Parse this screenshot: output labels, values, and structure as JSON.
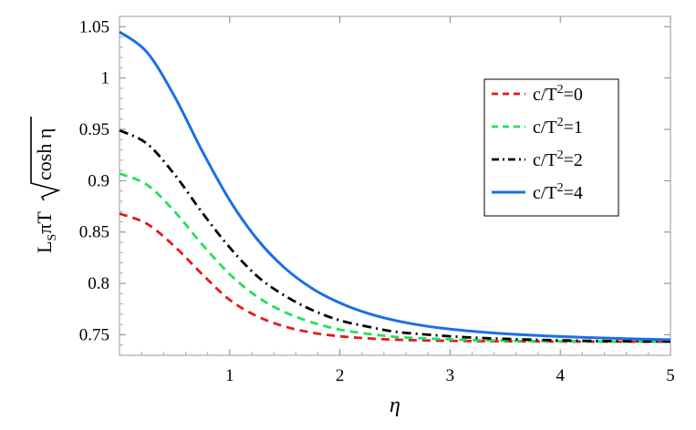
{
  "chart_data": {
    "type": "line",
    "xlabel": "η",
    "ylabel": {
      "prefix_L": "L",
      "subscript": "S",
      "middle": "πT",
      "radicand": "cosh η"
    },
    "xlim": [
      0,
      5
    ],
    "ylim": [
      0.73,
      1.06
    ],
    "xticks": [
      1,
      2,
      3,
      4,
      5
    ],
    "yticks": [
      0.75,
      0.8,
      0.85,
      0.9,
      0.95,
      1,
      1.05
    ],
    "ytick_labels": [
      "0.75",
      "0.8",
      "0.85",
      "0.9",
      "0.95",
      "1",
      "1.05"
    ],
    "grid": false,
    "legend_position": "right",
    "x": [
      0,
      0.25,
      0.5,
      0.75,
      1,
      1.25,
      1.5,
      1.75,
      2,
      2.25,
      2.5,
      2.75,
      3,
      3.25,
      3.5,
      3.75,
      4,
      4.25,
      4.5,
      4.75,
      5
    ],
    "series": [
      {
        "name": "c/T²=0",
        "label_base": "c/T",
        "label_sup": "2",
        "label_tail": "=0",
        "color": "#e41a1c",
        "dash": "dashed",
        "values": [
          0.868,
          0.858,
          0.836,
          0.809,
          0.784,
          0.768,
          0.758,
          0.752,
          0.7485,
          0.7465,
          0.7452,
          0.7445,
          0.7441,
          0.7438,
          0.7436,
          0.7435,
          0.7434,
          0.7433,
          0.7433,
          0.7432,
          0.7432
        ]
      },
      {
        "name": "c/T²=1",
        "label_base": "c/T",
        "label_sup": "2",
        "label_tail": "=1",
        "color": "#22e05a",
        "dash": "dashed",
        "values": [
          0.907,
          0.896,
          0.87,
          0.838,
          0.809,
          0.787,
          0.772,
          0.762,
          0.755,
          0.751,
          0.748,
          0.7465,
          0.7455,
          0.7447,
          0.7442,
          0.7439,
          0.7437,
          0.7435,
          0.7434,
          0.7433,
          0.7432
        ]
      },
      {
        "name": "c/T²=2",
        "label_base": "c/T",
        "label_sup": "2",
        "label_tail": "=2",
        "color": "#000000",
        "dash": "dashdot",
        "values": [
          0.949,
          0.936,
          0.906,
          0.869,
          0.835,
          0.807,
          0.788,
          0.774,
          0.764,
          0.758,
          0.753,
          0.7505,
          0.7485,
          0.747,
          0.746,
          0.7452,
          0.7446,
          0.7441,
          0.7438,
          0.7436,
          0.7434
        ]
      },
      {
        "name": "c/T²=4",
        "label_base": "c/T",
        "label_sup": "2",
        "label_tail": "=4",
        "color": "#1a6fe8",
        "dash": "solid",
        "values": [
          1.045,
          1.025,
          0.982,
          0.929,
          0.881,
          0.843,
          0.815,
          0.795,
          0.781,
          0.771,
          0.764,
          0.759,
          0.7555,
          0.753,
          0.751,
          0.7495,
          0.7483,
          0.7473,
          0.7465,
          0.7458,
          0.7452
        ]
      }
    ]
  }
}
